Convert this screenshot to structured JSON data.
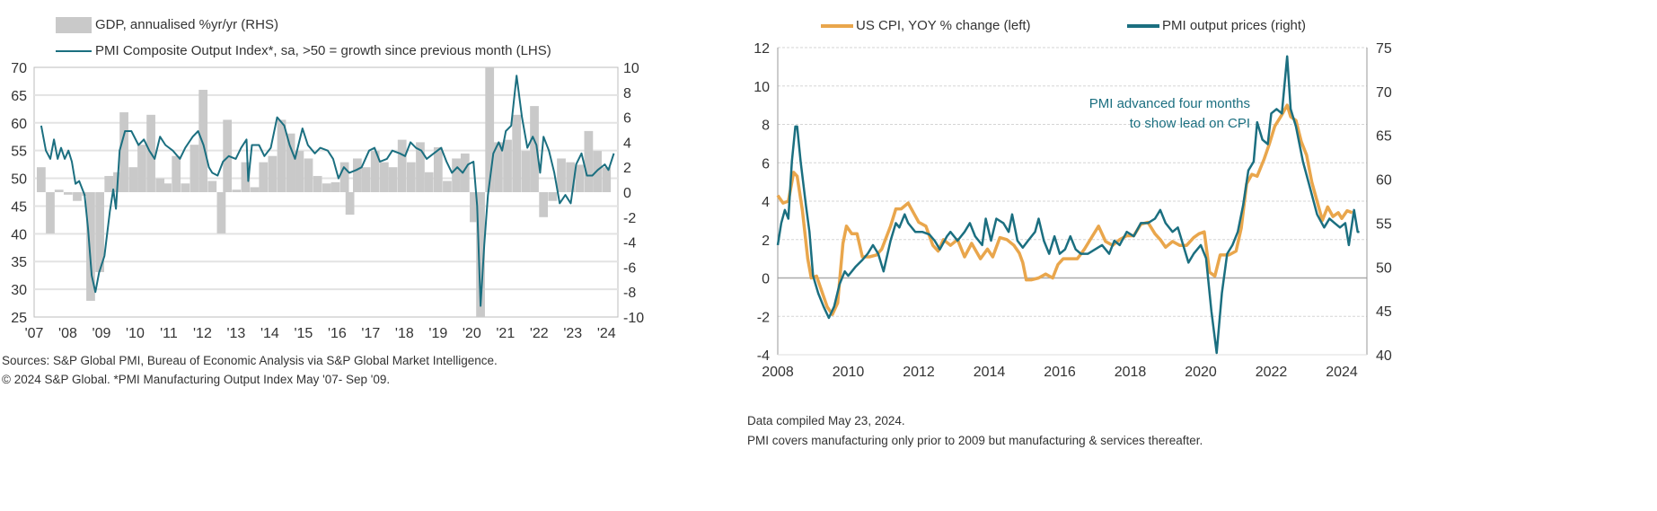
{
  "colors": {
    "teal": "#1b6f80",
    "orange": "#e9a64c",
    "bars": "#c9c9c9",
    "grid": "#e3e3e3"
  },
  "chart_data": [
    {
      "type": "bar+line",
      "legend": {
        "gdp": "GDP, annualised %yr/yr (RHS)",
        "pmi": "PMI Composite Output Index*, sa, >50 = growth since previous month (LHS)"
      },
      "left_axis": {
        "ylim": [
          25,
          70
        ],
        "ticks": [
          "70",
          "65",
          "60",
          "55",
          "50",
          "45",
          "40",
          "35",
          "30",
          "25"
        ]
      },
      "right_axis": {
        "ylim": [
          -10,
          10
        ],
        "ticks": [
          "10",
          "8",
          "6",
          "4",
          "2",
          "0",
          "-2",
          "-4",
          "-6",
          "-8",
          "-10"
        ]
      },
      "x_ticks": [
        "'07",
        "'08",
        "'09",
        "'10",
        "'11",
        "'12",
        "'13",
        "'14",
        "'15",
        "'16",
        "'17",
        "'18",
        "'19",
        "'20",
        "'21",
        "'22",
        "'23",
        "'24"
      ],
      "grid": true,
      "gdp_series": {
        "x": [
          2007.08,
          2007.35,
          2007.61,
          2007.88,
          2008.15,
          2008.42,
          2008.55,
          2008.82,
          2009.09,
          2009.35,
          2009.54,
          2009.81,
          2010.07,
          2010.34,
          2010.61,
          2010.82,
          2011.09,
          2011.36,
          2011.63,
          2011.89,
          2012.16,
          2012.43,
          2012.61,
          2012.88,
          2013.15,
          2013.42,
          2013.68,
          2013.95,
          2014.22,
          2014.49,
          2014.75,
          2015.02,
          2015.29,
          2015.56,
          2015.82,
          2016.09,
          2016.25,
          2016.47,
          2016.73,
          2017.0,
          2017.27,
          2017.53,
          2017.8,
          2018.07,
          2018.34,
          2018.6,
          2018.87,
          2019.14,
          2019.41,
          2019.67,
          2019.94,
          2020.13,
          2020.4,
          2020.66,
          2020.93,
          2021.2,
          2021.47,
          2021.73,
          2022.0,
          2022.27,
          2022.53,
          2022.8,
          2023.07,
          2023.34,
          2023.6,
          2023.87
        ],
        "values": [
          2.0,
          -3.3,
          0.2,
          -0.2,
          -0.7,
          -0.3,
          -8.7,
          -6.4,
          1.3,
          1.6,
          6.4,
          2.0,
          3.8,
          6.2,
          1.1,
          0.7,
          2.9,
          0.7,
          3.8,
          8.2,
          0.9,
          -3.3,
          5.8,
          0.2,
          2.4,
          0.4,
          2.4,
          2.9,
          5.8,
          4.7,
          3.3,
          2.7,
          1.3,
          0.7,
          0.8,
          2.4,
          -1.8,
          2.7,
          2.0,
          3.3,
          2.4,
          2.0,
          4.2,
          2.4,
          4.0,
          1.6,
          3.6,
          0.9,
          2.7,
          3.1,
          -2.4,
          -10,
          10,
          4.0,
          4.2,
          6.2,
          3.3,
          6.9,
          -2.0,
          -0.7,
          2.7,
          2.4,
          2.2,
          4.9,
          3.3,
          2.0
        ]
      },
      "pmi_series": {
        "x": [
          2007.21,
          2007.35,
          2007.48,
          2007.59,
          2007.7,
          2007.8,
          2007.91,
          2008.02,
          2008.12,
          2008.23,
          2008.34,
          2008.5,
          2008.6,
          2008.71,
          2008.82,
          2008.93,
          2009.09,
          2009.25,
          2009.35,
          2009.43,
          2009.54,
          2009.7,
          2009.89,
          2010.1,
          2010.26,
          2010.42,
          2010.58,
          2010.74,
          2010.9,
          2011.12,
          2011.33,
          2011.49,
          2011.71,
          2011.87,
          2012.03,
          2012.19,
          2012.29,
          2012.45,
          2012.61,
          2012.78,
          2012.99,
          2013.15,
          2013.31,
          2013.36,
          2013.47,
          2013.68,
          2013.84,
          2014.03,
          2014.22,
          2014.43,
          2014.59,
          2014.75,
          2014.97,
          2015.13,
          2015.34,
          2015.5,
          2015.72,
          2015.88,
          2016.04,
          2016.2,
          2016.36,
          2016.57,
          2016.73,
          2016.95,
          2017.11,
          2017.27,
          2017.48,
          2017.64,
          2017.86,
          2018.02,
          2018.18,
          2018.34,
          2018.5,
          2018.66,
          2018.87,
          2019.09,
          2019.25,
          2019.41,
          2019.57,
          2019.73,
          2019.89,
          2020.05,
          2020.16,
          2020.26,
          2020.37,
          2020.48,
          2020.64,
          2020.8,
          2020.9,
          2021.01,
          2021.17,
          2021.33,
          2021.49,
          2021.65,
          2021.81,
          2021.92,
          2022.03,
          2022.13,
          2022.29,
          2022.45,
          2022.61,
          2022.78,
          2022.94,
          2023.1,
          2023.26,
          2023.42,
          2023.58,
          2023.74,
          2023.95,
          2024.06,
          2024.22
        ],
        "values": [
          59.5,
          55,
          53.5,
          57,
          53.5,
          55.5,
          53.5,
          55,
          53,
          49,
          49.5,
          47,
          41,
          32.5,
          29.5,
          33,
          36,
          44,
          48,
          44.5,
          55,
          58.5,
          58.5,
          56,
          57,
          55,
          53.5,
          57.5,
          56,
          55,
          53.5,
          55.5,
          57.5,
          58.5,
          56,
          52,
          51,
          50.5,
          53,
          54,
          53.5,
          55.5,
          57,
          49.5,
          56,
          56,
          54,
          55.5,
          61,
          59.5,
          56,
          53.5,
          59,
          56,
          54.5,
          55.5,
          55,
          53.5,
          50,
          52,
          51,
          51.5,
          52,
          55,
          55.5,
          53,
          53.5,
          55,
          54.5,
          54,
          56.5,
          55.5,
          55,
          53.5,
          54.5,
          55.5,
          53,
          51,
          52,
          51,
          52.5,
          53,
          45,
          27,
          38,
          47,
          54.5,
          56.5,
          55,
          58.5,
          59.5,
          68.5,
          61,
          55.5,
          57.5,
          56,
          51,
          57.5,
          55,
          51,
          45.5,
          47,
          45.5,
          52.5,
          54.5,
          50.5,
          50.5,
          51.5,
          52.5,
          51.5,
          54.5
        ]
      }
    },
    {
      "type": "line",
      "legend": {
        "cpi": "US CPI, YOY % change (left)",
        "pmi": "PMI output prices (right)"
      },
      "left_axis": {
        "ylim": [
          -4,
          12
        ],
        "ticks": [
          "12",
          "10",
          "8",
          "6",
          "4",
          "2",
          "0",
          "-2",
          "-4"
        ]
      },
      "right_axis": {
        "ylim": [
          40,
          75
        ],
        "ticks": [
          "75",
          "70",
          "65",
          "60",
          "55",
          "50",
          "45",
          "40"
        ]
      },
      "x_ticks": [
        "2008",
        "2010",
        "2012",
        "2014",
        "2016",
        "2018",
        "2020",
        "2022",
        "2024"
      ],
      "grid": true,
      "annotation": [
        "PMI advanced four months",
        "to show lead on CPI"
      ],
      "cpi_series": {
        "x": [
          2008.0,
          2008.15,
          2008.3,
          2008.45,
          2008.55,
          2008.7,
          2008.85,
          2008.95,
          2009.1,
          2009.25,
          2009.4,
          2009.55,
          2009.7,
          2009.85,
          2009.95,
          2010.1,
          2010.25,
          2010.4,
          2010.6,
          2010.8,
          2010.95,
          2011.2,
          2011.35,
          2011.5,
          2011.7,
          2011.85,
          2012.0,
          2012.2,
          2012.4,
          2012.55,
          2012.7,
          2012.9,
          2013.1,
          2013.3,
          2013.5,
          2013.75,
          2013.95,
          2014.1,
          2014.3,
          2014.5,
          2014.7,
          2014.85,
          2014.95,
          2015.05,
          2015.2,
          2015.4,
          2015.6,
          2015.8,
          2015.95,
          2016.1,
          2016.3,
          2016.5,
          2016.7,
          2016.9,
          2017.1,
          2017.3,
          2017.5,
          2017.7,
          2017.9,
          2018.1,
          2018.3,
          2018.5,
          2018.7,
          2018.85,
          2019.0,
          2019.2,
          2019.4,
          2019.6,
          2019.8,
          2019.95,
          2020.1,
          2020.25,
          2020.4,
          2020.55,
          2020.8,
          2021.0,
          2021.15,
          2021.3,
          2021.45,
          2021.6,
          2021.8,
          2021.95,
          2022.1,
          2022.3,
          2022.45,
          2022.55,
          2022.7,
          2022.85,
          2023.0,
          2023.15,
          2023.3,
          2023.45,
          2023.6,
          2023.75,
          2023.9,
          2024.0,
          2024.15,
          2024.3
        ],
        "values": [
          4.3,
          3.9,
          4.0,
          5.5,
          5.3,
          3.5,
          1.0,
          0.0,
          0.1,
          -0.7,
          -1.5,
          -1.9,
          -1.3,
          1.8,
          2.7,
          2.3,
          2.3,
          1.1,
          1.1,
          1.2,
          1.5,
          2.7,
          3.6,
          3.6,
          3.9,
          3.4,
          2.9,
          2.7,
          1.7,
          1.4,
          2.0,
          1.7,
          2.0,
          1.1,
          1.8,
          1.0,
          1.5,
          1.1,
          2.1,
          2.0,
          1.7,
          1.3,
          0.8,
          -0.1,
          -0.1,
          0.0,
          0.2,
          0.0,
          0.7,
          1.0,
          1.0,
          1.0,
          1.5,
          2.1,
          2.7,
          1.9,
          1.7,
          2.0,
          2.2,
          2.2,
          2.8,
          2.9,
          2.3,
          2.0,
          1.6,
          1.9,
          1.7,
          1.7,
          2.1,
          2.3,
          2.4,
          0.3,
          0.1,
          1.2,
          1.2,
          1.4,
          2.6,
          4.9,
          5.4,
          5.3,
          6.2,
          7.0,
          7.9,
          8.5,
          9.0,
          8.4,
          8.2,
          7.1,
          6.4,
          5.0,
          4.0,
          3.0,
          3.7,
          3.2,
          3.4,
          3.1,
          3.5,
          3.4
        ]
      },
      "pmi_series": {
        "x": [
          2008.0,
          2008.1,
          2008.2,
          2008.3,
          2008.4,
          2008.5,
          2008.55,
          2008.65,
          2008.8,
          2008.9,
          2009.0,
          2009.15,
          2009.3,
          2009.45,
          2009.6,
          2009.75,
          2009.9,
          2010.0,
          2010.2,
          2010.4,
          2010.55,
          2010.7,
          2010.85,
          2011.0,
          2011.2,
          2011.35,
          2011.45,
          2011.6,
          2011.7,
          2011.9,
          2012.1,
          2012.3,
          2012.45,
          2012.6,
          2012.8,
          2012.9,
          2013.1,
          2013.3,
          2013.45,
          2013.6,
          2013.8,
          2013.9,
          2014.05,
          2014.2,
          2014.4,
          2014.55,
          2014.65,
          2014.8,
          2014.95,
          2015.1,
          2015.3,
          2015.4,
          2015.55,
          2015.7,
          2015.85,
          2016.0,
          2016.15,
          2016.3,
          2016.45,
          2016.6,
          2016.8,
          2017.0,
          2017.2,
          2017.4,
          2017.55,
          2017.7,
          2017.9,
          2018.1,
          2018.3,
          2018.5,
          2018.7,
          2018.85,
          2019.0,
          2019.2,
          2019.35,
          2019.5,
          2019.65,
          2019.8,
          2020.0,
          2020.15,
          2020.3,
          2020.45,
          2020.6,
          2020.75,
          2020.9,
          2021.05,
          2021.2,
          2021.35,
          2021.5,
          2021.6,
          2021.75,
          2021.9,
          2022.0,
          2022.15,
          2022.3,
          2022.45,
          2022.55,
          2022.7,
          2022.9,
          2023.1,
          2023.3,
          2023.5,
          2023.65,
          2023.8,
          2023.95,
          2024.1,
          2024.2,
          2024.35,
          2024.45,
          2024.5
        ],
        "values": [
          52.5,
          55,
          56.5,
          55.5,
          62,
          66,
          66,
          62,
          57,
          54,
          49,
          47,
          45.5,
          44.2,
          45.5,
          48,
          49.5,
          49,
          50,
          50.8,
          51.5,
          52.5,
          51.5,
          49.5,
          53,
          55,
          54.5,
          56,
          55,
          54,
          54,
          53.7,
          53,
          52,
          53.5,
          54,
          53,
          54,
          55,
          53.5,
          52.5,
          55.5,
          53,
          55.5,
          55,
          54,
          56,
          53,
          52.2,
          53,
          54,
          55.5,
          53,
          51.5,
          53.5,
          51.5,
          52,
          53.5,
          52,
          51.5,
          51.5,
          52,
          52.5,
          51.5,
          53,
          52.5,
          54,
          53.5,
          55,
          55,
          55.5,
          56.5,
          55,
          54,
          54.5,
          52.5,
          50.5,
          51.5,
          52.5,
          51,
          45,
          40.2,
          47,
          51.5,
          52.5,
          54,
          57,
          61,
          62,
          66.5,
          64.5,
          64,
          67.5,
          68,
          67.5,
          74,
          68,
          66,
          62,
          59,
          56,
          54.5,
          55.5,
          55,
          54.5,
          55,
          52.5,
          56.5,
          54,
          54
        ]
      }
    }
  ],
  "footnotes_left": [
    "Sources: S&P Global PMI, Bureau of Economic Analysis via S&P Global Market Intelligence.",
    "© 2024 S&P Global.  *PMI Manufacturing Output Index May '07- Sep '09."
  ],
  "footnotes_right": [
    "Data compiled May 23, 2024.",
    "PMI covers manufacturing only prior to 2009 but manufacturing & services thereafter."
  ]
}
